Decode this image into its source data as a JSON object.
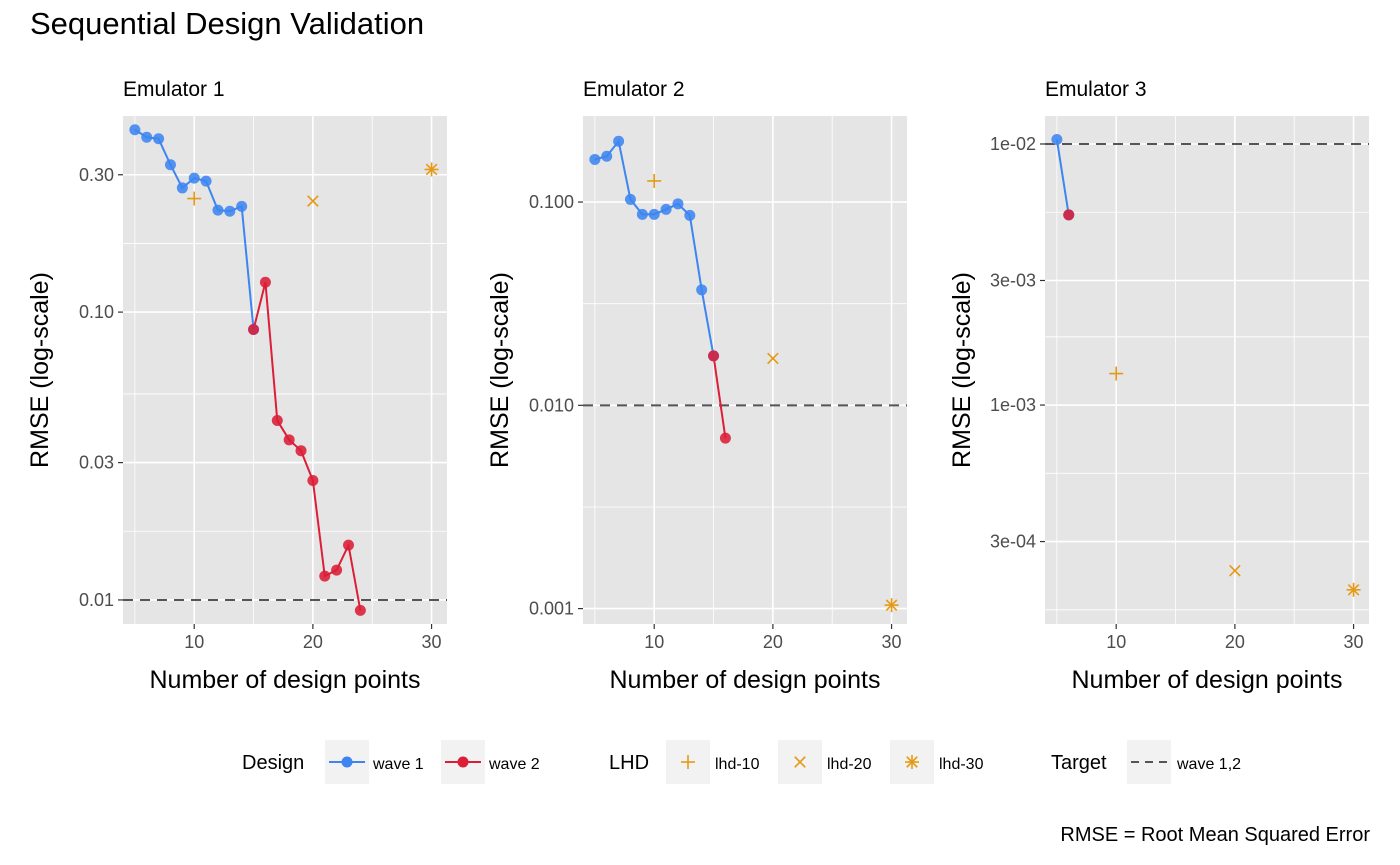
{
  "title": "Sequential Design Validation",
  "caption": "RMSE = Root Mean Squared Error",
  "colors": {
    "wave1": "#3d85f0",
    "wave2": "#dc1e37",
    "lhd": "#e69a14",
    "target": "#555555",
    "panel_bg": "#e5e5e5",
    "grid": "#ffffff"
  },
  "chart_data": [
    {
      "type": "line",
      "title": "Emulator 1",
      "xlabel": "Number of design points",
      "ylabel": "RMSE (log-scale)",
      "log_y": true,
      "xlim": [
        4,
        31.3
      ],
      "ylim": [
        0.00825,
        0.48
      ],
      "x_ticks": [
        10,
        20,
        30
      ],
      "y_ticks": [
        0.01,
        0.03,
        0.1,
        0.3
      ],
      "y_tick_labels": [
        "0.01",
        "0.03",
        "0.10",
        "0.30"
      ],
      "series": [
        {
          "name": "wave 1",
          "x": [
            5,
            6,
            7,
            8,
            9,
            10,
            11,
            12,
            13,
            14,
            15
          ],
          "y": [
            0.43,
            0.405,
            0.4,
            0.325,
            0.27,
            0.292,
            0.285,
            0.226,
            0.224,
            0.233,
            0.087
          ]
        },
        {
          "name": "wave 2",
          "x": [
            15,
            16,
            17,
            18,
            19,
            20,
            21,
            22,
            23,
            24
          ],
          "y": [
            0.087,
            0.127,
            0.042,
            0.036,
            0.033,
            0.026,
            0.0121,
            0.0127,
            0.0155,
            0.0092
          ]
        }
      ],
      "lhd": [
        {
          "name": "lhd-10",
          "x": 10,
          "y": 0.248
        },
        {
          "name": "lhd-20",
          "x": 20,
          "y": 0.243
        },
        {
          "name": "lhd-30",
          "x": 30,
          "y": 0.313
        }
      ],
      "target": 0.01
    },
    {
      "type": "line",
      "title": "Emulator 2",
      "xlabel": "Number of design points",
      "ylabel": "RMSE (log-scale)",
      "log_y": true,
      "xlim": [
        4,
        31.3
      ],
      "ylim": [
        0.00084,
        0.265
      ],
      "x_ticks": [
        10,
        20,
        30
      ],
      "y_ticks": [
        0.001,
        0.01,
        0.1
      ],
      "y_tick_labels": [
        "0.001",
        "0.010",
        "0.100"
      ],
      "series": [
        {
          "name": "wave 1",
          "x": [
            5,
            6,
            7,
            8,
            9,
            10,
            11,
            12,
            13,
            14,
            15
          ],
          "y": [
            0.162,
            0.168,
            0.199,
            0.103,
            0.087,
            0.087,
            0.092,
            0.098,
            0.086,
            0.037,
            0.0175
          ]
        },
        {
          "name": "wave 2",
          "x": [
            15,
            16
          ],
          "y": [
            0.0175,
            0.0069
          ]
        }
      ],
      "lhd": [
        {
          "name": "lhd-10",
          "x": 10,
          "y": 0.127
        },
        {
          "name": "lhd-20",
          "x": 20,
          "y": 0.017
        },
        {
          "name": "lhd-30",
          "x": 30,
          "y": 0.00104
        }
      ],
      "target": 0.01
    },
    {
      "type": "line",
      "title": "Emulator 3",
      "xlabel": "Number of design points",
      "ylabel": "RMSE (log-scale)",
      "log_y": true,
      "xlim": [
        4,
        31.3
      ],
      "ylim": [
        0.000145,
        0.0128
      ],
      "x_ticks": [
        10,
        20,
        30
      ],
      "y_ticks": [
        0.0003,
        0.001,
        0.003,
        0.01
      ],
      "y_tick_labels": [
        "3e-04",
        "1e-03",
        "3e-03",
        "1e-02"
      ],
      "series": [
        {
          "name": "wave 1",
          "x": [
            5,
            6
          ],
          "y": [
            0.0104,
            0.00535
          ]
        },
        {
          "name": "wave 2",
          "x": [
            6
          ],
          "y": [
            0.00535
          ]
        }
      ],
      "lhd": [
        {
          "name": "lhd-10",
          "x": 10,
          "y": 0.00132
        },
        {
          "name": "lhd-20",
          "x": 20,
          "y": 0.000232
        },
        {
          "name": "lhd-30",
          "x": 30,
          "y": 0.000196
        }
      ],
      "target": 0.01
    }
  ],
  "legend": {
    "design_title": "Design",
    "design_items": [
      "wave 1",
      "wave 2"
    ],
    "lhd_title": "LHD",
    "lhd_items": [
      "lhd-10",
      "lhd-20",
      "lhd-30"
    ],
    "target_title": "Target",
    "target_items": [
      "wave 1,2"
    ]
  }
}
